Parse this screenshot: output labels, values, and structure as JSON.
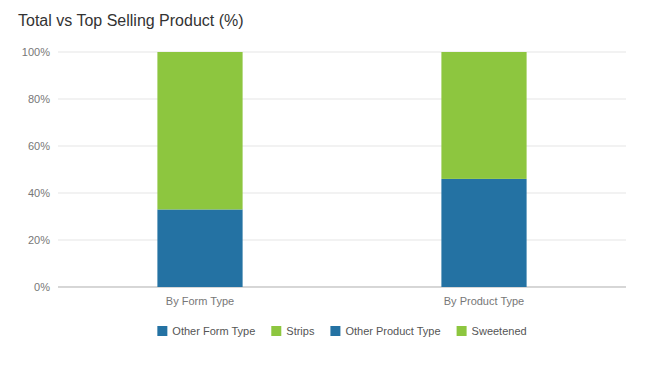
{
  "chart_data": {
    "type": "bar",
    "title": "Total vs Top Selling Product (%)",
    "categories": [
      "By Form Type",
      "By Product Type"
    ],
    "series": [
      {
        "name": "Other Form Type",
        "color": "#2472a3",
        "values": [
          33,
          null
        ]
      },
      {
        "name": "Strips",
        "color": "#8dc63f",
        "values": [
          67,
          null
        ]
      },
      {
        "name": "Other Product Type",
        "color": "#2472a3",
        "values": [
          null,
          46
        ]
      },
      {
        "name": "Sweetened",
        "color": "#8dc63f",
        "values": [
          null,
          54
        ]
      }
    ],
    "stacked": true,
    "ylim": [
      0,
      100
    ],
    "yticks": [
      {
        "value": 0,
        "label": "0%"
      },
      {
        "value": 20,
        "label": "20%"
      },
      {
        "value": 40,
        "label": "40%"
      },
      {
        "value": 60,
        "label": "60%"
      },
      {
        "value": 80,
        "label": "80%"
      },
      {
        "value": 100,
        "label": "100%"
      }
    ],
    "grid": true,
    "legend": "bottom"
  }
}
